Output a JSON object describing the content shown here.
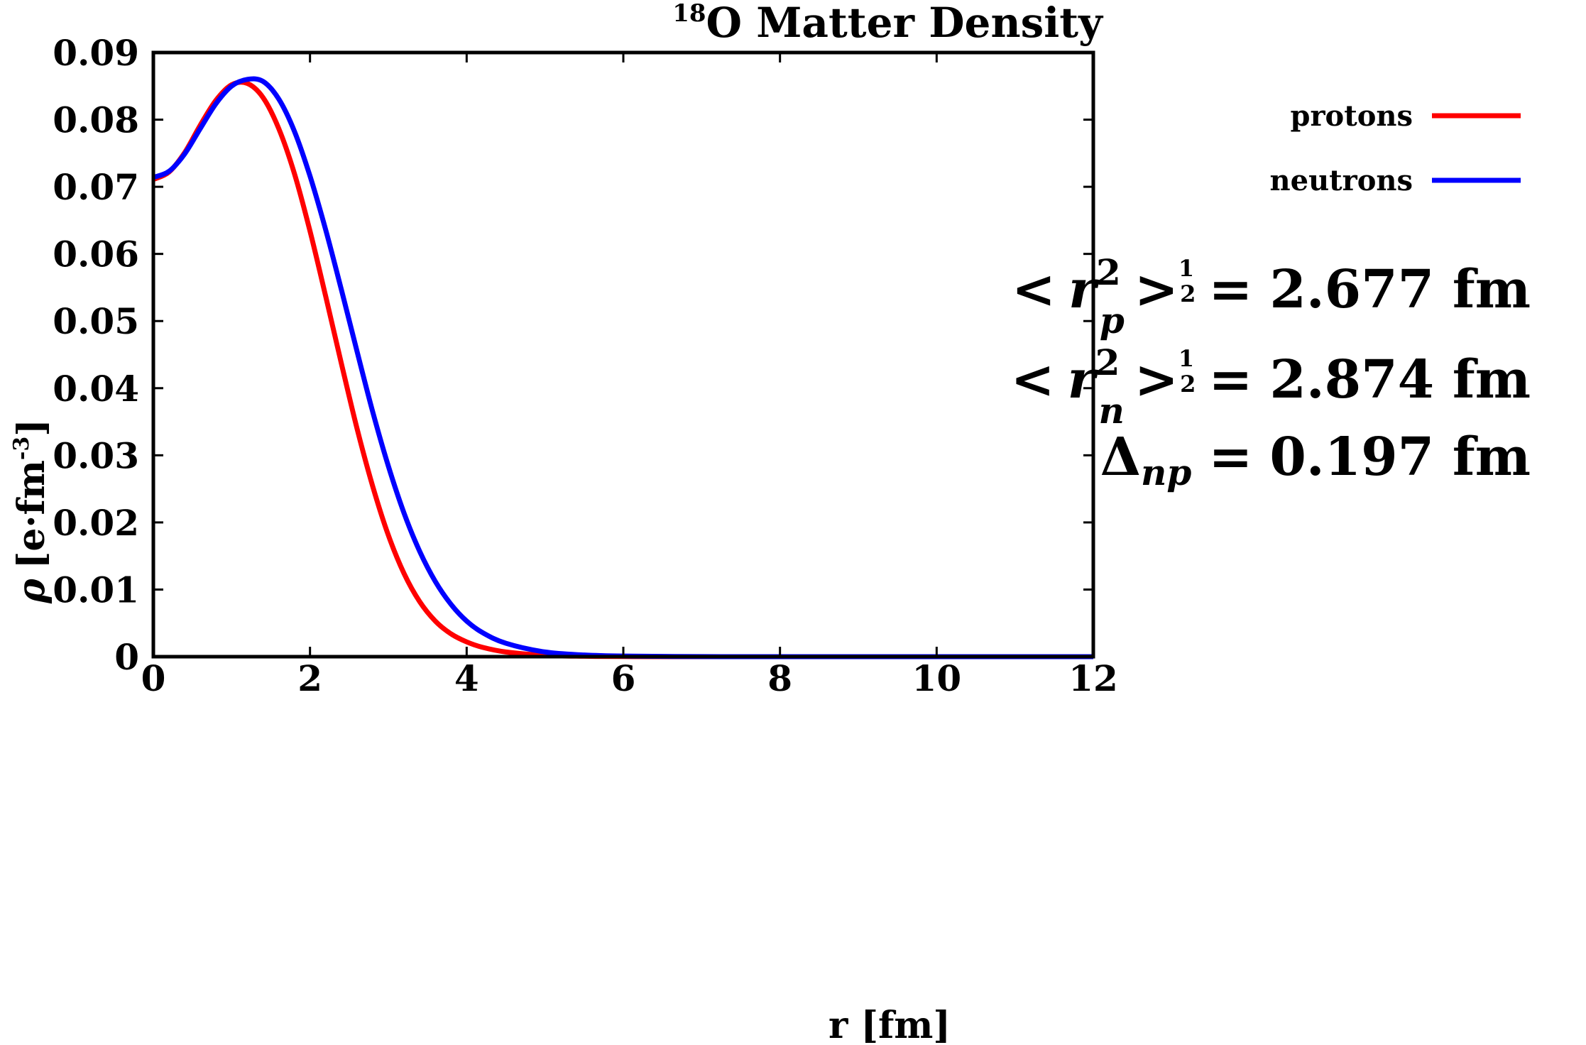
{
  "chart_data": {
    "type": "line",
    "title": {
      "sup": "18",
      "main": "O Matter Density"
    },
    "xlabel": "r [fm]",
    "ylabel": {
      "symbol": "ρ",
      "unit": "[e·fm",
      "exp": "-3",
      "close": "]"
    },
    "xlim": [
      0,
      12
    ],
    "ylim": [
      0,
      0.09
    ],
    "xticks": [
      0,
      2,
      4,
      6,
      8,
      10,
      12
    ],
    "yticks": [
      0,
      0.01,
      0.02,
      0.03,
      0.04,
      0.05,
      0.06,
      0.07,
      0.08,
      0.09
    ],
    "ytick_labels": [
      "0",
      "0.01",
      "0.02",
      "0.03",
      "0.04",
      "0.05",
      "0.06",
      "0.07",
      "0.08",
      "0.09"
    ],
    "grid": false,
    "legend_position": "top-right",
    "series": [
      {
        "name": "protons",
        "color": "#ff0000",
        "x": [
          0,
          0.2,
          0.4,
          0.6,
          0.8,
          1.0,
          1.2,
          1.4,
          1.6,
          1.8,
          2.0,
          2.2,
          2.4,
          2.6,
          2.8,
          3.0,
          3.2,
          3.4,
          3.6,
          3.8,
          4.0,
          4.2,
          4.5,
          5.0,
          5.5,
          6.0,
          7.0,
          8.0,
          10.0,
          12.0
        ],
        "y": [
          0.0711,
          0.0722,
          0.0751,
          0.0792,
          0.0829,
          0.0852,
          0.0854,
          0.0833,
          0.0787,
          0.072,
          0.0634,
          0.0537,
          0.0437,
          0.034,
          0.0254,
          0.0181,
          0.0124,
          0.0082,
          0.0053,
          0.0034,
          0.0022,
          0.0014,
          0.0007,
          0.0002,
          6e-05,
          2e-05,
          0,
          0,
          0,
          0
        ]
      },
      {
        "name": "neutrons",
        "color": "#0000ff",
        "x": [
          0,
          0.2,
          0.4,
          0.6,
          0.8,
          1.0,
          1.2,
          1.4,
          1.6,
          1.8,
          2.0,
          2.2,
          2.4,
          2.6,
          2.8,
          3.0,
          3.2,
          3.4,
          3.6,
          3.8,
          4.0,
          4.2,
          4.5,
          5.0,
          5.5,
          6.0,
          7.0,
          8.0,
          10.0,
          12.0
        ],
        "y": [
          0.0714,
          0.0723,
          0.0749,
          0.0787,
          0.0824,
          0.085,
          0.086,
          0.0857,
          0.0831,
          0.0783,
          0.0716,
          0.0636,
          0.0547,
          0.0455,
          0.0365,
          0.0284,
          0.0214,
          0.0157,
          0.0112,
          0.0078,
          0.0053,
          0.0036,
          0.002,
          0.0007,
          0.00025,
          9e-05,
          1e-05,
          0,
          0,
          0
        ]
      }
    ],
    "annotations": {
      "rp": {
        "lt": "<",
        "r": "r",
        "pow": "2",
        "sub": "p",
        "gt": ">",
        "num": "1",
        "den": "2",
        "eq": "=",
        "value": "2.677 fm"
      },
      "rn": {
        "lt": "<",
        "r": "r",
        "pow": "2",
        "sub": "n",
        "gt": ">",
        "num": "1",
        "den": "2",
        "eq": "=",
        "value": "2.874 fm"
      },
      "delta": {
        "symbol": "Δ",
        "sub": "np",
        "eq": "=",
        "value": "0.197 fm"
      }
    }
  }
}
